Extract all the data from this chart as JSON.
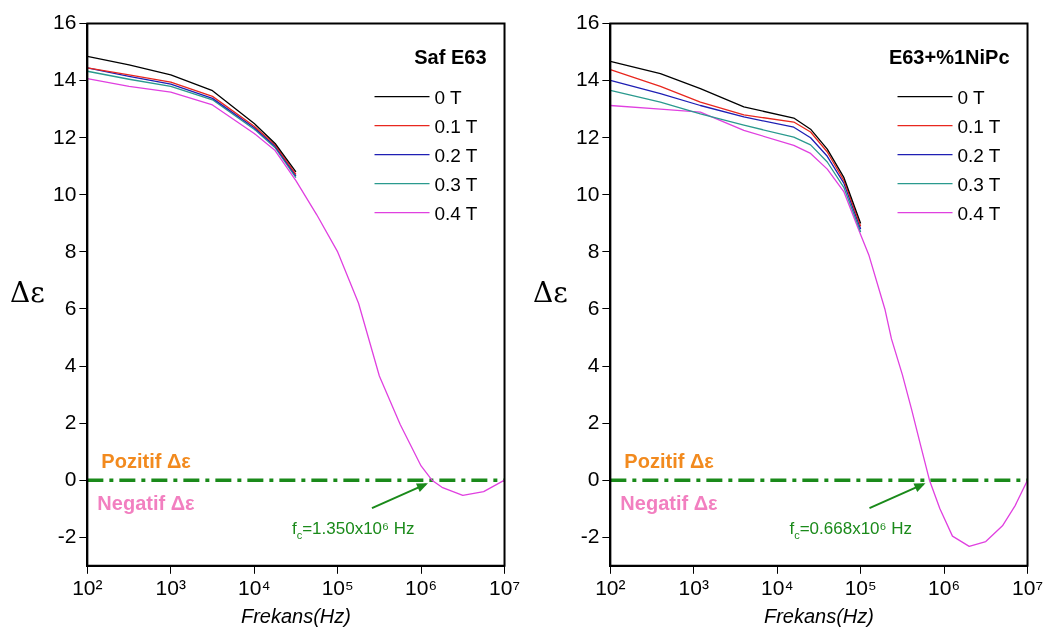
{
  "chart_data": [
    {
      "type": "line",
      "title": "Saf E63",
      "xlabel": "Frekans(Hz)",
      "ylabel": "Δε",
      "log": "x",
      "grid": false,
      "legend": "top right",
      "line_style": "solid",
      "marker": "none",
      "x": [
        100,
        316,
        1000,
        3160,
        10000,
        17800,
        31600,
        56200,
        100000,
        178000,
        316000,
        562000,
        1000000,
        1350000,
        1780000,
        3160000,
        5620000,
        10000000
      ],
      "xlim": [
        100,
        10000000
      ],
      "xticks": [
        {
          "value": 100,
          "label": "10²"
        },
        {
          "value": 1000,
          "label": "10³"
        },
        {
          "value": 10000,
          "label": "10⁴"
        },
        {
          "value": 100000,
          "label": "10⁵"
        },
        {
          "value": 1000000,
          "label": "10⁶"
        },
        {
          "value": 10000000,
          "label": "10⁷"
        }
      ],
      "ylim": [
        -3,
        16
      ],
      "yticks": [
        -2,
        0,
        2,
        4,
        6,
        8,
        10,
        12,
        14,
        16
      ],
      "series": [
        {
          "name": "0 T",
          "color": "#000000",
          "values": [
            14.85,
            14.55,
            14.2,
            13.65,
            12.5,
            11.8,
            10.8,
            null,
            null,
            null,
            null,
            null,
            null,
            null,
            null,
            null,
            null,
            null
          ]
        },
        {
          "name": "0.1 T",
          "color": "#e8271e",
          "values": [
            14.45,
            14.2,
            13.95,
            13.45,
            12.4,
            11.75,
            10.72,
            null,
            null,
            null,
            null,
            null,
            null,
            null,
            null,
            null,
            null,
            null
          ]
        },
        {
          "name": "0.2 T",
          "color": "#1f1fb4",
          "values": [
            14.45,
            14.15,
            13.88,
            13.38,
            12.35,
            11.7,
            10.66,
            null,
            null,
            null,
            null,
            null,
            null,
            null,
            null,
            null,
            null,
            null
          ]
        },
        {
          "name": "0.3 T",
          "color": "#2a9a8e",
          "values": [
            14.33,
            14.05,
            13.8,
            13.33,
            12.3,
            11.65,
            10.6,
            null,
            null,
            null,
            null,
            null,
            null,
            null,
            null,
            null,
            null,
            null
          ]
        },
        {
          "name": "0.4 T",
          "color": "#e040e0",
          "values": [
            14.07,
            13.8,
            13.6,
            13.15,
            12.15,
            11.55,
            10.5,
            9.3,
            8.0,
            6.2,
            3.65,
            1.95,
            0.5,
            0,
            -0.25,
            -0.53,
            -0.4,
            0
          ]
        }
      ],
      "ref_lines": [
        {
          "axis": "y",
          "value": 0,
          "label": null,
          "color": "#1a8a1a",
          "line_style": "dashed"
        }
      ],
      "annotations": [
        "Pozitif Δε",
        "Negatif Δε",
        {
          "text": "f$_{c}$=1.350x10⁶ Hz",
          "x": 1350000,
          "y": 0
        }
      ]
    },
    {
      "type": "line",
      "title": "E63+%1NiPc",
      "xlabel": "Frekans(Hz)",
      "ylabel": "Δε",
      "log": "x",
      "grid": false,
      "legend": "top right",
      "line_style": "solid",
      "marker": "none",
      "x": [
        100,
        398,
        1200,
        3980,
        15800,
        25100,
        39800,
        63100,
        100000,
        126000,
        195000,
        234000,
        316000,
        407000,
        525000,
        668000,
        891000,
        1260000,
        2000000,
        3160000,
        5010000,
        7080000,
        10000000
      ],
      "xlim": [
        100,
        10000000
      ],
      "xticks": [
        {
          "value": 100,
          "label": "10²"
        },
        {
          "value": 1000,
          "label": "10³"
        },
        {
          "value": 10000,
          "label": "10⁴"
        },
        {
          "value": 100000,
          "label": "10⁵"
        },
        {
          "value": 1000000,
          "label": "10⁶"
        },
        {
          "value": 10000000,
          "label": "10⁷"
        }
      ],
      "ylim": [
        -3,
        16
      ],
      "yticks": [
        -2,
        0,
        2,
        4,
        6,
        8,
        10,
        12,
        14,
        16
      ],
      "series": [
        {
          "name": "0 T",
          "color": "#000000",
          "values": [
            14.68,
            14.25,
            13.72,
            13.08,
            12.69,
            12.3,
            11.6,
            10.6,
            9.0,
            null,
            null,
            null,
            null,
            null,
            null,
            null,
            null,
            null,
            null,
            null,
            null,
            null,
            null
          ]
        },
        {
          "name": "0.1 T",
          "color": "#e8271e",
          "values": [
            14.39,
            13.8,
            13.25,
            12.8,
            12.55,
            12.2,
            11.5,
            10.5,
            8.9,
            null,
            null,
            null,
            null,
            null,
            null,
            null,
            null,
            null,
            null,
            null,
            null,
            null,
            null
          ]
        },
        {
          "name": "0.2 T",
          "color": "#1f1fb4",
          "values": [
            14.01,
            13.55,
            13.13,
            12.73,
            12.37,
            12.0,
            11.35,
            10.4,
            8.8,
            null,
            null,
            null,
            null,
            null,
            null,
            null,
            null,
            null,
            null,
            null,
            null,
            null,
            null
          ]
        },
        {
          "name": "0.3 T",
          "color": "#2a9a8e",
          "values": [
            13.66,
            13.25,
            12.84,
            12.44,
            12.02,
            11.75,
            11.15,
            10.25,
            8.7,
            null,
            null,
            null,
            null,
            null,
            null,
            null,
            null,
            null,
            null,
            null,
            null,
            null,
            null
          ]
        },
        {
          "name": "0.4 T",
          "color": "#e040e0",
          "values": [
            13.13,
            13.0,
            12.9,
            12.26,
            11.73,
            11.45,
            10.9,
            10.1,
            8.6,
            7.87,
            6.0,
            4.95,
            3.7,
            2.49,
            1.2,
            0,
            -1.0,
            -1.96,
            -2.32,
            -2.15,
            -1.6,
            -0.9,
            0
          ]
        }
      ],
      "ref_lines": [
        {
          "axis": "y",
          "value": 0,
          "label": null,
          "color": "#1a8a1a",
          "line_style": "dashed"
        }
      ],
      "annotations": [
        "Pozitif Δε",
        "Negatif Δε",
        {
          "text": "f$_{c}$=0.668x10⁶ Hz",
          "x": 668000,
          "y": 0
        }
      ]
    }
  ]
}
